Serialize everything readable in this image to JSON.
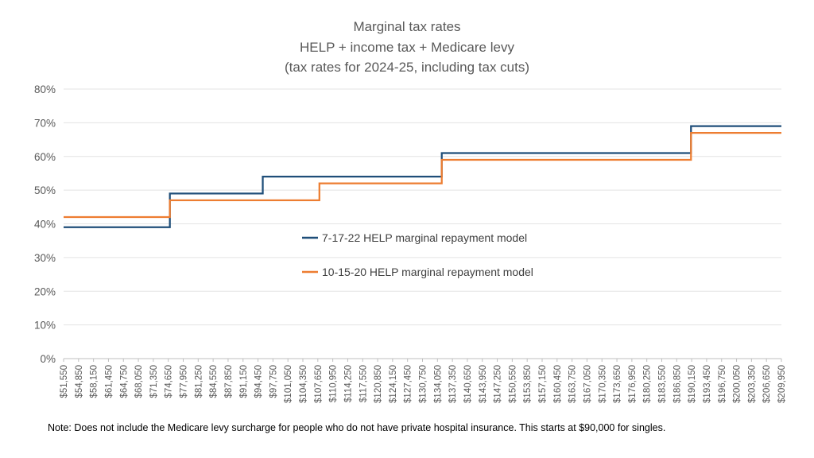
{
  "chart_data": {
    "type": "line",
    "title_lines": [
      "Marginal tax rates",
      "HELP + income tax + Medicare levy",
      "(tax rates for 2024-25, including tax cuts)"
    ],
    "y_axis": {
      "min": 0,
      "max": 80,
      "step": 10,
      "tick_labels": [
        "0%",
        "10%",
        "20%",
        "30%",
        "40%",
        "50%",
        "60%",
        "70%",
        "80%"
      ]
    },
    "x_range": [
      51550,
      209950
    ],
    "x_tick_step": 3300,
    "x_tick_labels": [
      "$51,550",
      "$54,850",
      "$58,150",
      "$61,450",
      "$64,750",
      "$68,050",
      "$71,350",
      "$74,650",
      "$77,950",
      "$81,250",
      "$84,550",
      "$87,850",
      "$91,150",
      "$94,450",
      "$97,750",
      "$101,050",
      "$104,350",
      "$107,650",
      "$110,950",
      "$114,250",
      "$117,550",
      "$120,850",
      "$124,150",
      "$127,450",
      "$130,750",
      "$134,050",
      "$137,350",
      "$140,650",
      "$143,950",
      "$147,250",
      "$150,550",
      "$153,850",
      "$157,150",
      "$160,450",
      "$163,750",
      "$167,050",
      "$170,350",
      "$173,650",
      "$176,950",
      "$180,250",
      "$183,550",
      "$186,850",
      "$190,150",
      "$193,450",
      "$196,750",
      "$200,050",
      "$203,350",
      "$206,650",
      "$209,950"
    ],
    "series": [
      {
        "name": "7-17-22 HELP marginal repayment model",
        "color": "#1f4e79",
        "steps": [
          {
            "from": 51550,
            "rate": 39
          },
          {
            "from": 75000,
            "rate": 49
          },
          {
            "from": 95500,
            "rate": 54
          },
          {
            "from": 135000,
            "rate": 61
          },
          {
            "from": 190000,
            "rate": 69
          }
        ]
      },
      {
        "name": "10-15-20 HELP marginal repayment model",
        "color": "#ed7d31",
        "steps": [
          {
            "from": 51550,
            "rate": 42
          },
          {
            "from": 75000,
            "rate": 47
          },
          {
            "from": 108000,
            "rate": 52
          },
          {
            "from": 135000,
            "rate": 59
          },
          {
            "from": 190000,
            "rate": 67
          }
        ]
      }
    ],
    "legend_position": "center",
    "grid": true
  },
  "note": "Note: Does not include the Medicare levy surcharge for people who do not have private hospital insurance. This starts at $90,000 for singles."
}
